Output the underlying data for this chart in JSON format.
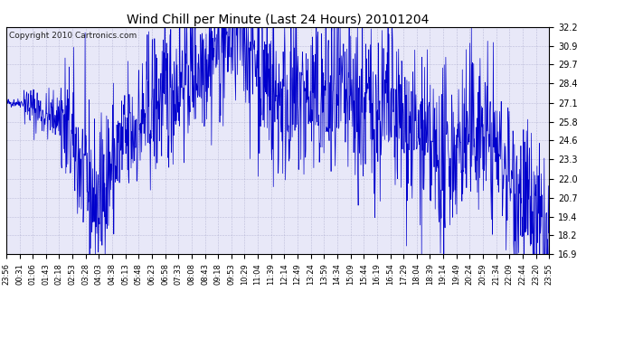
{
  "title": "Wind Chill per Minute (Last 24 Hours) 20101204",
  "copyright": "Copyright 2010 Cartronics.com",
  "y_ticks": [
    16.9,
    18.2,
    19.4,
    20.7,
    22.0,
    23.3,
    24.6,
    25.8,
    27.1,
    28.4,
    29.7,
    30.9,
    32.2
  ],
  "y_min": 16.9,
  "y_max": 32.2,
  "line_color": "#0000CC",
  "bg_color": "#E8E8F8",
  "grid_color": "#AAAACC",
  "title_color": "#000000",
  "x_labels": [
    "23:56",
    "00:31",
    "01:06",
    "01:43",
    "02:18",
    "02:53",
    "03:28",
    "04:03",
    "04:38",
    "05:13",
    "05:48",
    "06:23",
    "06:58",
    "07:33",
    "08:08",
    "08:43",
    "09:18",
    "09:53",
    "10:29",
    "11:04",
    "11:39",
    "12:14",
    "12:49",
    "13:24",
    "13:59",
    "14:34",
    "15:09",
    "15:44",
    "16:19",
    "16:54",
    "17:29",
    "18:04",
    "18:39",
    "19:14",
    "19:49",
    "20:24",
    "20:59",
    "21:34",
    "22:09",
    "22:44",
    "23:20",
    "23:55"
  ],
  "num_points": 1440,
  "figsize": [
    6.9,
    3.75
  ],
  "dpi": 100
}
